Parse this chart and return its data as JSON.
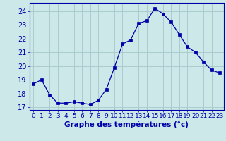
{
  "hours": [
    0,
    1,
    2,
    3,
    4,
    5,
    6,
    7,
    8,
    9,
    10,
    11,
    12,
    13,
    14,
    15,
    16,
    17,
    18,
    19,
    20,
    21,
    22,
    23
  ],
  "temperatures": [
    18.7,
    19.0,
    17.9,
    17.3,
    17.3,
    17.4,
    17.3,
    17.2,
    17.5,
    18.3,
    19.9,
    21.6,
    21.9,
    23.1,
    23.3,
    24.2,
    23.8,
    23.2,
    22.3,
    21.4,
    21.0,
    20.3,
    19.7,
    19.5
  ],
  "line_color": "#0000aa",
  "marker_color": "#0000aa",
  "bg_color": "#cce8e8",
  "grid_color": "#aacccc",
  "axis_color": "#0000aa",
  "xlabel": "Graphe des températures (°c)",
  "ylim": [
    16.8,
    24.6
  ],
  "yticks": [
    17,
    18,
    19,
    20,
    21,
    22,
    23,
    24
  ],
  "xlim": [
    -0.5,
    23.5
  ],
  "xlabel_fontsize": 7.5,
  "tick_fontsize": 7.0
}
